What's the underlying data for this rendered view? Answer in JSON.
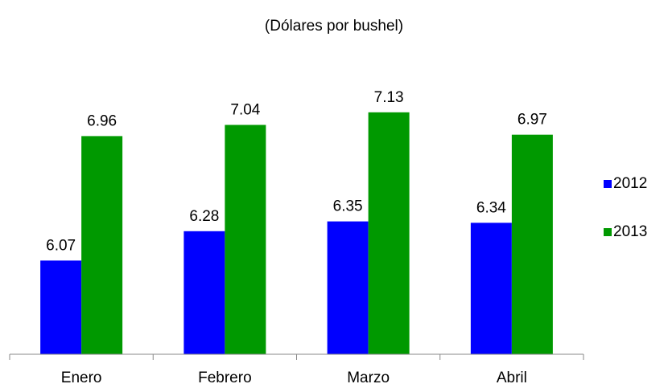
{
  "chart_data": {
    "type": "bar",
    "subtitle": "(Dólares por bushel)",
    "categories": [
      "Enero",
      "Febrero",
      "Marzo",
      "Abril"
    ],
    "series": [
      {
        "name": "2012",
        "color": "#0000ff",
        "values": [
          6.07,
          6.28,
          6.35,
          6.34
        ]
      },
      {
        "name": "2013",
        "color": "#009900",
        "values": [
          6.96,
          7.04,
          7.13,
          6.97
        ]
      }
    ],
    "ylim": [
      5.4,
      7.6
    ],
    "legend": "right"
  }
}
